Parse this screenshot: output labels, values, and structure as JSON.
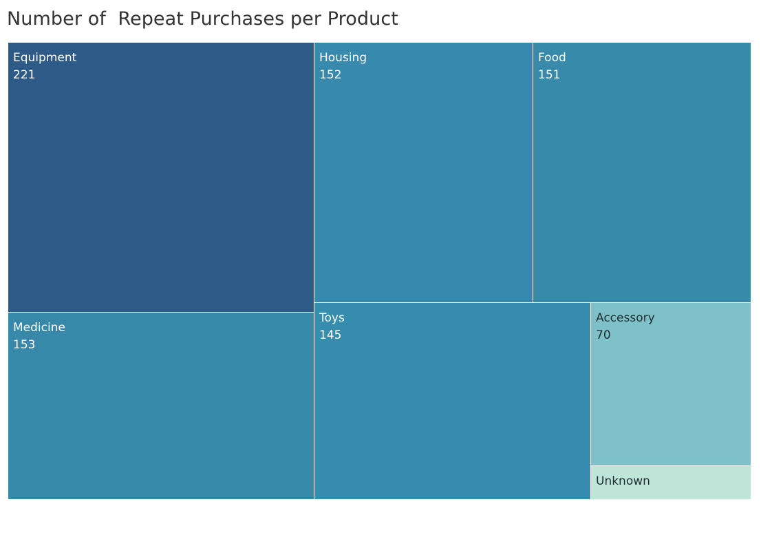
{
  "title": "Number of  Repeat Purchases per Product",
  "chart_data": {
    "type": "treemap",
    "title": "Number of  Repeat Purchases per Product",
    "items": [
      {
        "name": "Equipment",
        "value": 221,
        "value_label": "221",
        "color": "#2e5a87",
        "text_color": "#ffffff"
      },
      {
        "name": "Medicine",
        "value": 153,
        "value_label": "153",
        "color": "#3888a9",
        "text_color": "#ffffff"
      },
      {
        "name": "Housing",
        "value": 152,
        "value_label": "152",
        "color": "#3789ad",
        "text_color": "#ffffff"
      },
      {
        "name": "Food",
        "value": 151,
        "value_label": "151",
        "color": "#378aaa",
        "text_color": "#ffffff"
      },
      {
        "name": "Toys",
        "value": 145,
        "value_label": "145",
        "color": "#368dae",
        "text_color": "#ffffff"
      },
      {
        "name": "Accessory",
        "value": 70,
        "value_label": "70",
        "color": "#7fc1c9",
        "text_color": "#1f2d33"
      },
      {
        "name": "Unknown",
        "value": 16,
        "value_label": "",
        "color": "#bfe4d8",
        "text_color": "#1f2d33"
      }
    ]
  }
}
